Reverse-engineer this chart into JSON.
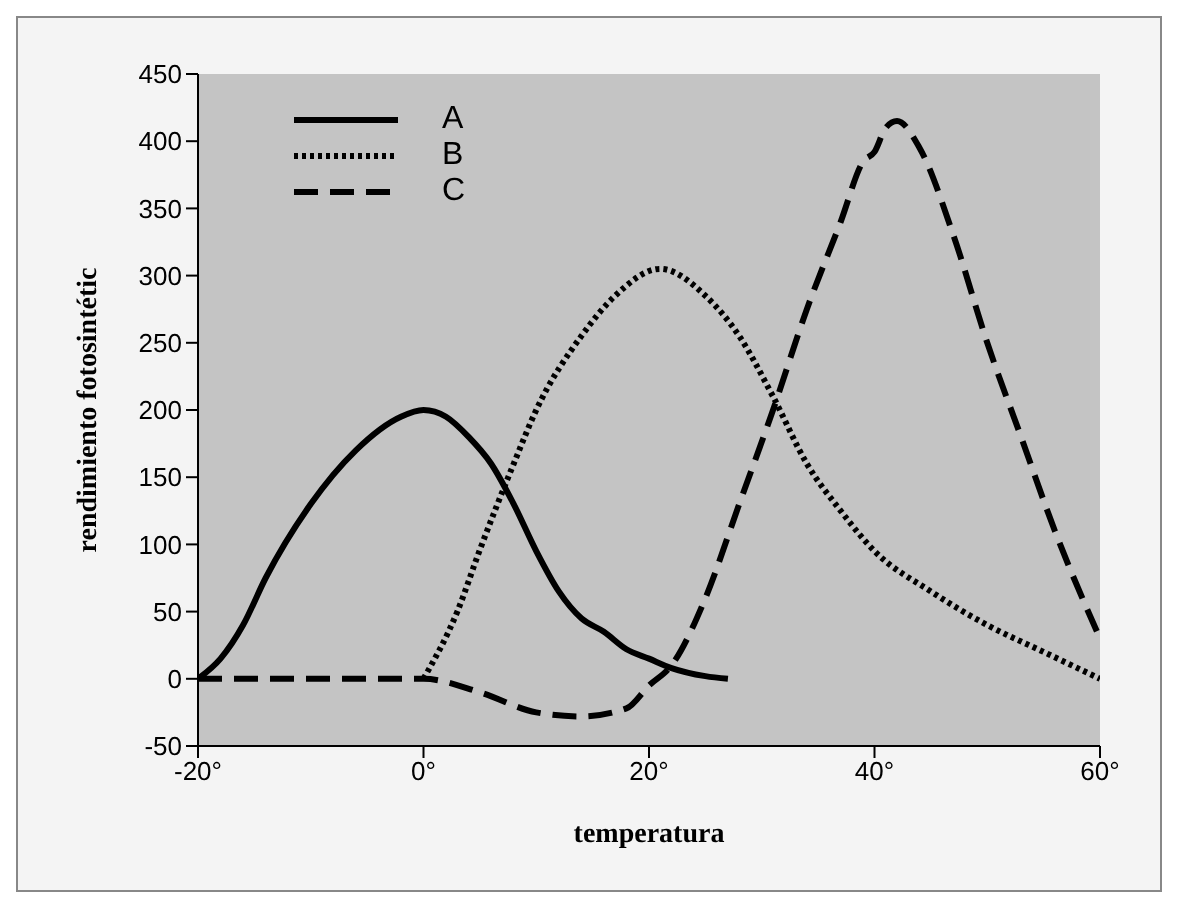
{
  "chart_data": {
    "type": "line",
    "xlabel": "temperatura",
    "ylabel": "rendimiento fotosintétic",
    "xlim": [
      -20,
      60
    ],
    "xticks": [
      {
        "value": -20,
        "label": "-20°"
      },
      {
        "value": 0,
        "label": "0°"
      },
      {
        "value": 20,
        "label": "20°"
      },
      {
        "value": 40,
        "label": "40°"
      },
      {
        "value": 60,
        "label": "60°"
      }
    ],
    "ylim": [
      -50,
      450
    ],
    "yticks": [
      -50,
      0,
      50,
      100,
      150,
      200,
      250,
      300,
      350,
      400,
      450
    ],
    "grid": false,
    "legend": "top left",
    "marker": "none",
    "series": [
      {
        "name": "A",
        "color": "#000000",
        "line_style": "solid",
        "x": [
          -20,
          -18,
          -16,
          -14,
          -10,
          -6,
          -2,
          0,
          2,
          4,
          6,
          8,
          10,
          12,
          14,
          16,
          18,
          20,
          22,
          25,
          27
        ],
        "values": [
          0,
          15,
          40,
          75,
          130,
          170,
          195,
          200,
          195,
          180,
          160,
          130,
          95,
          65,
          45,
          35,
          22,
          15,
          8,
          2,
          0
        ]
      },
      {
        "name": "B",
        "color": "#000000",
        "line_style": "dotted",
        "x": [
          0,
          3,
          5,
          8,
          10,
          14,
          17,
          21,
          25,
          28,
          31,
          34,
          37,
          40,
          45,
          50,
          55,
          60
        ],
        "values": [
          0,
          50,
          96,
          160,
          200,
          255,
          285,
          305,
          285,
          255,
          210,
          160,
          125,
          95,
          65,
          40,
          20,
          0
        ]
      },
      {
        "name": "C",
        "color": "#000000",
        "line_style": "dashed",
        "x": [
          -20,
          -10,
          0,
          5,
          10,
          14,
          18,
          20,
          22,
          25,
          28,
          31,
          34,
          37,
          39,
          40,
          41,
          42,
          44,
          47,
          50,
          53,
          56,
          60
        ],
        "values": [
          0,
          0,
          0,
          -10,
          -25,
          -28,
          -22,
          -5,
          10,
          60,
          130,
          200,
          275,
          340,
          385,
          392,
          410,
          415,
          395,
          330,
          250,
          180,
          110,
          30
        ]
      }
    ]
  }
}
